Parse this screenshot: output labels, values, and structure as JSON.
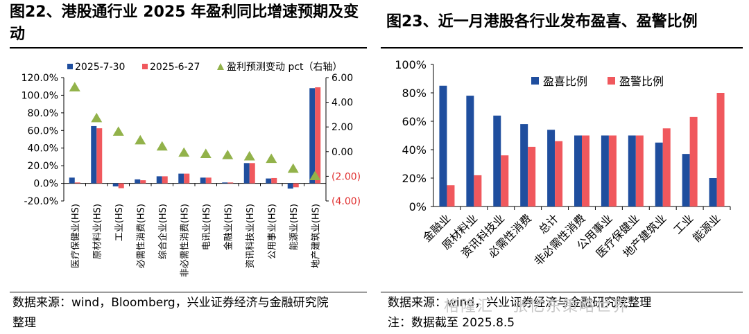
{
  "left": {
    "title": "图22、港股通行业 2025 年盈利同比增速预期及变动",
    "source_line1": "数据来源：wind，Bloomberg，兴业证券经济与金融研究院",
    "source_line2": "整理"
  },
  "right": {
    "title": "图23、近一月港股各行业发布盈喜、盈警比例",
    "source_line1": "数据来源：wind，兴业证券经济与金融研究院整理",
    "source_line2": "注：数据截至 2025.8.5"
  },
  "watermark": "格隆汇 · 张忆东策略世界",
  "colors": {
    "blue": "#1f4e9e",
    "red": "#f0585d",
    "green": "#92b24a"
  },
  "chart_data": [
    {
      "type": "bar",
      "categories": [
        "医疗保健业(HS)",
        "原材料业(HS)",
        "工业(HS)",
        "必需性消费(HS)",
        "综合企业(HS)",
        "非必需性消费(HS)",
        "电讯业(HS)",
        "金融业(HS)",
        "资讯科技业(HS)",
        "公用事业(HS)",
        "能源业(HS)",
        "地产建筑业(HS)"
      ],
      "series": [
        {
          "name": "2025-7-30",
          "axis": "left",
          "values": [
            6.5,
            65.0,
            -3.5,
            4.5,
            8.0,
            11.0,
            6.5,
            1.0,
            23.0,
            5.5,
            -6.0,
            108.0
          ]
        },
        {
          "name": "2025-6-27",
          "axis": "left",
          "values": [
            1.0,
            62.5,
            -5.5,
            3.5,
            8.0,
            11.0,
            6.5,
            1.0,
            23.0,
            6.0,
            -4.5,
            109.0
          ]
        },
        {
          "name": "盈利预测变动 pct（右轴）",
          "axis": "right",
          "type": "scatter",
          "marker": "triangle",
          "values": [
            5.2,
            2.7,
            1.6,
            0.9,
            0.4,
            -0.1,
            -0.2,
            -0.3,
            -0.4,
            -0.6,
            -1.4,
            -2.0
          ]
        }
      ],
      "ylim": [
        -20,
        120
      ],
      "yticks": [
        "-20.0%",
        "0.0%",
        "20.0%",
        "40.0%",
        "60.0%",
        "80.0%",
        "100.0%",
        "120.0%"
      ],
      "y2lim": [
        -4,
        6
      ],
      "y2ticks": [
        "(4.00)",
        "(2.00)",
        "0.00",
        "2.00",
        "4.00",
        "6.00"
      ],
      "legend": "top"
    },
    {
      "type": "bar",
      "categories": [
        "金融业",
        "原材料业",
        "资讯科技业",
        "必需性消费",
        "总计",
        "非必需性消费",
        "公用事业",
        "医疗保健业",
        "地产建筑业",
        "工业",
        "能源业"
      ],
      "series": [
        {
          "name": "盈喜比例",
          "values": [
            85,
            78,
            64,
            58,
            54,
            50,
            50,
            50,
            45,
            37,
            20
          ]
        },
        {
          "name": "盈警比例",
          "values": [
            15,
            22,
            36,
            42,
            46,
            50,
            50,
            50,
            55,
            63,
            80
          ]
        }
      ],
      "ylim": [
        0,
        100
      ],
      "yticks": [
        "0%",
        "20%",
        "40%",
        "60%",
        "80%",
        "100%"
      ],
      "legend": "top-center"
    }
  ]
}
